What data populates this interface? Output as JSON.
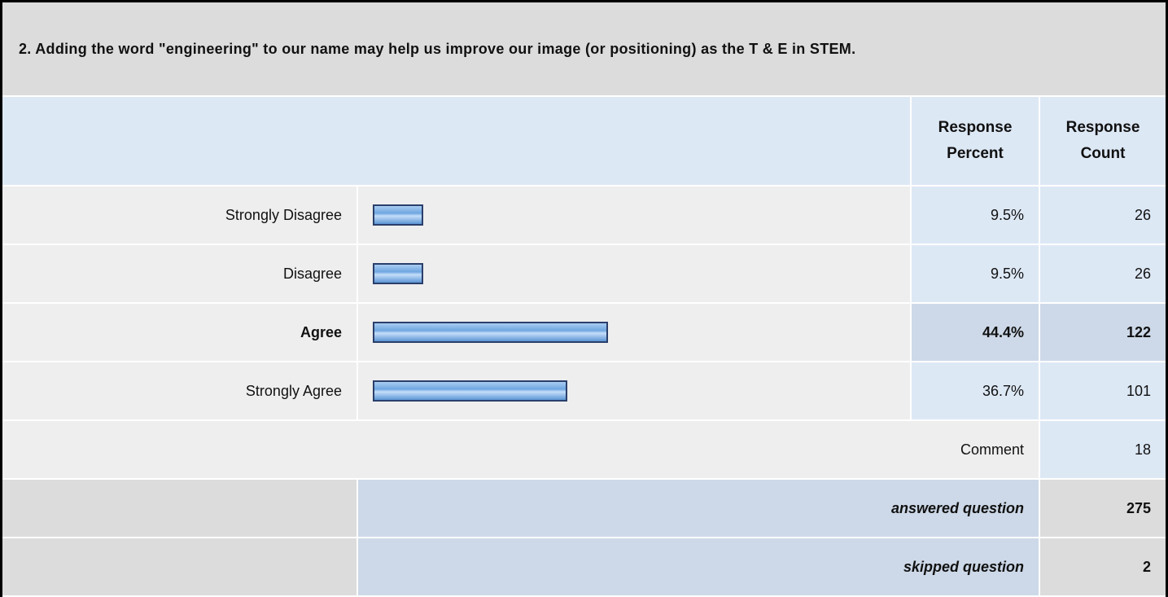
{
  "question": {
    "title": "2. Adding the word \"engineering\" to our name may help us improve our image (or positioning) as the T & E in STEM."
  },
  "header": {
    "percent": "Response Percent",
    "count": "Response Count"
  },
  "rows": [
    {
      "label": "Strongly Disagree",
      "percent": 9.5,
      "percent_label": "9.5%",
      "count": 26
    },
    {
      "label": "Disagree",
      "percent": 9.5,
      "percent_label": "9.5%",
      "count": 26
    },
    {
      "label": "Agree",
      "percent": 44.4,
      "percent_label": "44.4%",
      "count": 122,
      "bold": true
    },
    {
      "label": "Strongly Agree",
      "percent": 36.7,
      "percent_label": "36.7%",
      "count": 101
    }
  ],
  "comment": {
    "label": "Comment",
    "count": 18
  },
  "summary": [
    {
      "label": "answered question",
      "count": 275
    },
    {
      "label": "skipped question",
      "count": 2
    }
  ]
}
